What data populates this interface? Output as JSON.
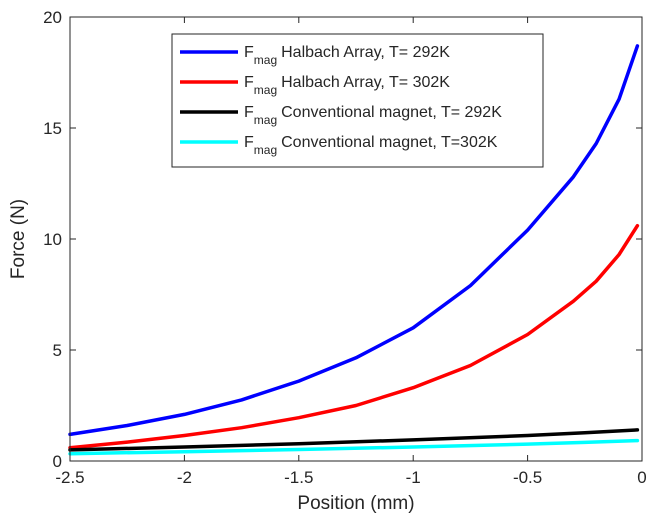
{
  "chart_data": {
    "type": "line",
    "title": "",
    "xlabel": "Position (mm)",
    "ylabel": "Force (N)",
    "xlim": [
      -2.5,
      0
    ],
    "ylim": [
      0,
      20
    ],
    "xticks": [
      -2.5,
      -2,
      -1.5,
      -1,
      -0.5,
      0
    ],
    "yticks": [
      0,
      5,
      10,
      15,
      20
    ],
    "xtick_labels": [
      "-2.5",
      "-2",
      "-1.5",
      "-1",
      "-0.5",
      "0"
    ],
    "ytick_labels": [
      "0",
      "5",
      "10",
      "15",
      "20"
    ],
    "grid": false,
    "legend_position": "top-center",
    "series": [
      {
        "name": "Halbach Array, T= 292K",
        "legend_symbol": "F",
        "legend_subscript": "mag",
        "color": "#0000ff",
        "x": [
          -2.5,
          -2.25,
          -2.0,
          -1.75,
          -1.5,
          -1.25,
          -1.0,
          -0.75,
          -0.5,
          -0.3,
          -0.2,
          -0.1,
          -0.02
        ],
        "y": [
          1.2,
          1.6,
          2.1,
          2.75,
          3.6,
          4.65,
          6.0,
          7.9,
          10.4,
          12.8,
          14.3,
          16.3,
          18.7
        ]
      },
      {
        "name": "Halbach Array, T= 302K",
        "legend_symbol": "F",
        "legend_subscript": "mag",
        "color": "#ff0000",
        "x": [
          -2.5,
          -2.25,
          -2.0,
          -1.75,
          -1.5,
          -1.25,
          -1.0,
          -0.75,
          -0.5,
          -0.3,
          -0.2,
          -0.1,
          -0.02
        ],
        "y": [
          0.6,
          0.85,
          1.15,
          1.5,
          1.95,
          2.5,
          3.3,
          4.3,
          5.7,
          7.2,
          8.1,
          9.3,
          10.6
        ]
      },
      {
        "name": "Conventional magnet, T= 292K",
        "legend_symbol": "F",
        "legend_subscript": "mag",
        "color": "#000000",
        "x": [
          -2.5,
          -2.0,
          -1.5,
          -1.0,
          -0.5,
          -0.25,
          -0.02
        ],
        "y": [
          0.5,
          0.63,
          0.78,
          0.95,
          1.15,
          1.27,
          1.4
        ]
      },
      {
        "name": "Conventional magnet, T=302K",
        "legend_symbol": "F",
        "legend_subscript": "mag",
        "color": "#00ffff",
        "x": [
          -2.5,
          -2.0,
          -1.5,
          -1.0,
          -0.5,
          -0.25,
          -0.02
        ],
        "y": [
          0.33,
          0.42,
          0.52,
          0.63,
          0.76,
          0.84,
          0.92
        ]
      }
    ]
  }
}
